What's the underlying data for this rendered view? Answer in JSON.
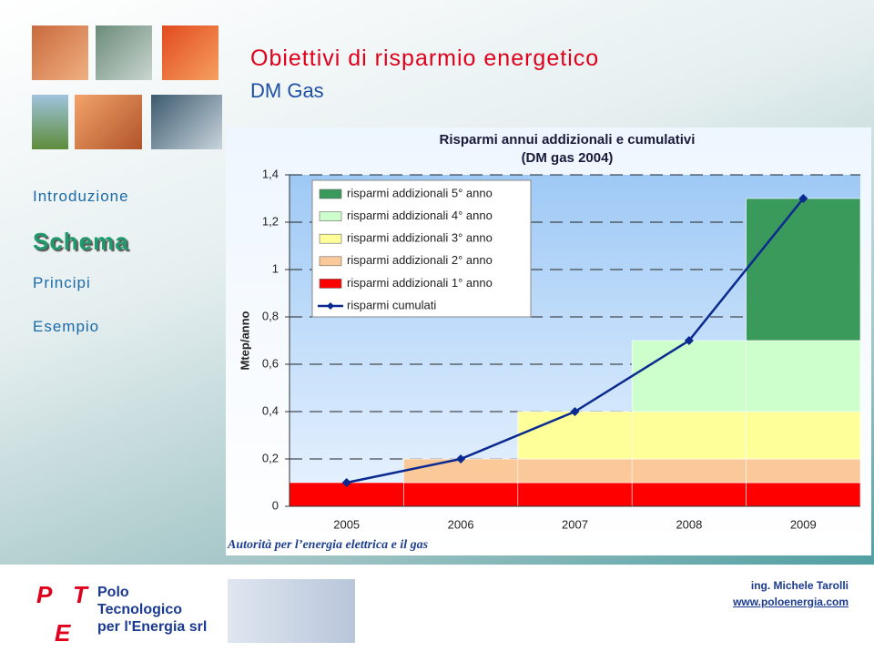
{
  "slide": {
    "title": "Obiettivi di risparmio energetico",
    "subtitle": "DM Gas",
    "nav": [
      "Introduzione",
      "Schema",
      "Principi",
      "Esempio"
    ],
    "footer": {
      "logo_letters": [
        "P",
        "T",
        "E"
      ],
      "company": [
        "Polo",
        "Tecnologico",
        "per l'Energia srl"
      ],
      "author": "ing. Michele Tarolli",
      "website": "www.poloenergia.com"
    }
  },
  "chart_data": {
    "type": "stacked_bar_line",
    "title": "Risparmi annui addizionali e cumulativi",
    "subtitle": "(DM gas 2004)",
    "ylabel": "Mtep/anno",
    "source": "Autorità per l’energia elettrica e il gas",
    "categories": [
      "2005",
      "2006",
      "2007",
      "2008",
      "2009"
    ],
    "series": [
      {
        "name": "risparmi addizionali 1° anno",
        "color": "#ff0000",
        "values": [
          0.1,
          0.1,
          0.1,
          0.1,
          0.1
        ]
      },
      {
        "name": "risparmi addizionali 2° anno",
        "color": "#fbc89a",
        "values": [
          0,
          0.1,
          0.1,
          0.1,
          0.1
        ]
      },
      {
        "name": "risparmi addizionali 3° anno",
        "color": "#ffff99",
        "values": [
          0,
          0,
          0.2,
          0.2,
          0.2
        ]
      },
      {
        "name": "risparmi addizionali 4° anno",
        "color": "#ccffcc",
        "values": [
          0,
          0,
          0,
          0.3,
          0.3
        ]
      },
      {
        "name": "risparmi addizionali 5° anno",
        "color": "#3a9a5c",
        "values": [
          0,
          0,
          0,
          0,
          0.6
        ]
      }
    ],
    "line": {
      "name": "risparmi cumulati",
      "color": "#0b2a8f",
      "values": [
        0.1,
        0.2,
        0.4,
        0.7,
        1.3
      ]
    },
    "ylim": [
      0,
      1.4
    ],
    "yticks": [
      0,
      {
        "value": 0.2,
        "label": "0,2"
      },
      {
        "value": 0.4,
        "label": "0,4"
      },
      {
        "value": 0.6,
        "label": "0,6"
      },
      {
        "value": 0.8,
        "label": "0,8"
      },
      1,
      {
        "value": 1.2,
        "label": "1,2"
      },
      {
        "value": 1.4,
        "label": "1,4"
      }
    ],
    "grid": true,
    "legend": "top-left"
  }
}
